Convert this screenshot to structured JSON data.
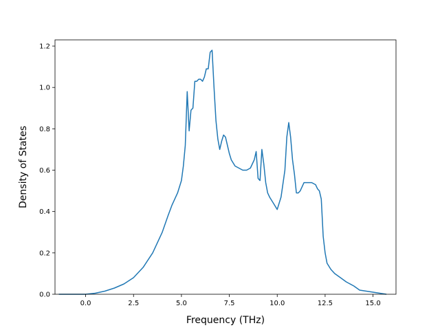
{
  "chart_data": {
    "type": "line",
    "title": "",
    "xlabel": "Frequency (THz)",
    "ylabel": "Density of States",
    "xlim": [
      -1.6,
      16.2
    ],
    "ylim": [
      0.0,
      1.23
    ],
    "xticks": [
      0.0,
      2.5,
      5.0,
      7.5,
      10.0,
      12.5,
      15.0
    ],
    "xtick_labels": [
      "0.0",
      "2.5",
      "5.0",
      "7.5",
      "10.0",
      "12.5",
      "15.0"
    ],
    "yticks": [
      0.0,
      0.2,
      0.4,
      0.6,
      0.8,
      1.0,
      1.2
    ],
    "ytick_labels": [
      "0.0",
      "0.2",
      "0.4",
      "0.6",
      "0.8",
      "1.0",
      "1.2"
    ],
    "grid": false,
    "series": [
      {
        "color": "#1f77b4",
        "x": [
          -1.4,
          0.0,
          0.5,
          1.0,
          1.5,
          2.0,
          2.5,
          3.0,
          3.5,
          4.0,
          4.3,
          4.5,
          4.8,
          5.0,
          5.1,
          5.2,
          5.3,
          5.4,
          5.5,
          5.6,
          5.7,
          5.8,
          5.9,
          6.0,
          6.1,
          6.2,
          6.3,
          6.4,
          6.5,
          6.6,
          6.7,
          6.8,
          6.9,
          7.0,
          7.1,
          7.2,
          7.3,
          7.4,
          7.5,
          7.6,
          7.8,
          8.0,
          8.2,
          8.4,
          8.6,
          8.8,
          8.9,
          9.0,
          9.1,
          9.2,
          9.3,
          9.4,
          9.5,
          9.6,
          9.8,
          10.0,
          10.2,
          10.4,
          10.5,
          10.6,
          10.7,
          10.8,
          10.9,
          11.0,
          11.1,
          11.2,
          11.4,
          11.6,
          11.8,
          12.0,
          12.1,
          12.2,
          12.3,
          12.4,
          12.5,
          12.6,
          12.8,
          13.0,
          13.3,
          13.6,
          14.0,
          14.3,
          15.7
        ],
        "y": [
          0.0,
          0.0,
          0.005,
          0.015,
          0.03,
          0.05,
          0.08,
          0.13,
          0.2,
          0.3,
          0.38,
          0.43,
          0.49,
          0.55,
          0.62,
          0.72,
          0.98,
          0.79,
          0.89,
          0.9,
          1.03,
          1.03,
          1.04,
          1.04,
          1.03,
          1.05,
          1.09,
          1.09,
          1.17,
          1.18,
          1.0,
          0.84,
          0.75,
          0.7,
          0.74,
          0.77,
          0.76,
          0.72,
          0.68,
          0.65,
          0.62,
          0.61,
          0.6,
          0.6,
          0.61,
          0.65,
          0.69,
          0.56,
          0.55,
          0.7,
          0.63,
          0.54,
          0.49,
          0.47,
          0.44,
          0.41,
          0.47,
          0.6,
          0.76,
          0.83,
          0.76,
          0.65,
          0.58,
          0.49,
          0.49,
          0.5,
          0.54,
          0.54,
          0.54,
          0.53,
          0.51,
          0.5,
          0.46,
          0.28,
          0.2,
          0.15,
          0.12,
          0.1,
          0.08,
          0.06,
          0.04,
          0.02,
          0.0
        ]
      }
    ]
  }
}
